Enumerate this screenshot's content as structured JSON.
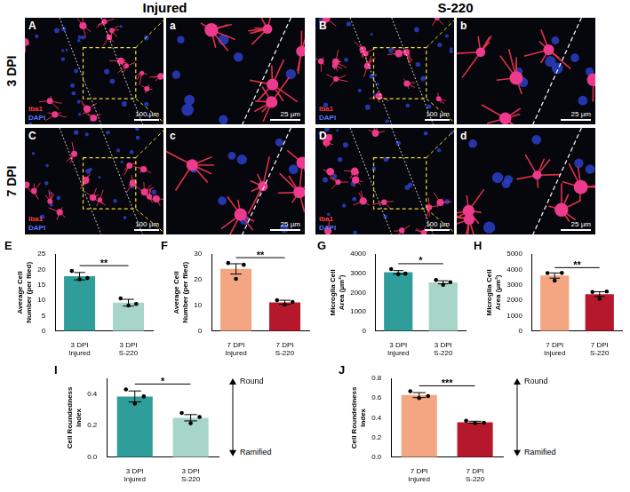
{
  "figure": {
    "column_headers": [
      "Injured",
      "S-220"
    ],
    "row_labels": [
      "3 DPI",
      "7 DPI"
    ],
    "image_panels": [
      [
        {
          "label": "A",
          "stains": [
            "Iba1",
            "DAPI"
          ],
          "scale_bar": "100 µm"
        },
        {
          "label": "a",
          "scale_bar": "25 µm"
        },
        {
          "label": "B",
          "stains": [
            "Iba1",
            "DAPI"
          ],
          "scale_bar": "100 µm"
        },
        {
          "label": "b",
          "scale_bar": "25 µm"
        }
      ],
      [
        {
          "label": "C",
          "stains": [
            "Iba1",
            "DAPI"
          ],
          "scale_bar": "100 µm"
        },
        {
          "label": "c",
          "scale_bar": "25 µm"
        },
        {
          "label": "D",
          "stains": [
            "Iba1",
            "DAPI"
          ],
          "scale_bar": "100 µm"
        },
        {
          "label": "d",
          "scale_bar": "25 µm"
        }
      ]
    ]
  },
  "chart_data": [
    {
      "panel": "E",
      "type": "bar",
      "categories": [
        "3 DPI Injured",
        "3 DPI S-220"
      ],
      "values": [
        17.8,
        9.2
      ],
      "errors": [
        1.2,
        1.1
      ],
      "points": [
        [
          19.5,
          16.8,
          17.2
        ],
        [
          10.6,
          8.3,
          8.8
        ]
      ],
      "colors": [
        "#2f9e9b",
        "#a7d5c8"
      ],
      "ylabel": "Average Cell Number (per filed)",
      "ylim": [
        0,
        25
      ],
      "yticks": [
        0,
        5,
        10,
        15,
        20,
        25
      ],
      "grid": false,
      "significance": "**"
    },
    {
      "panel": "F",
      "type": "bar",
      "categories": [
        "7 DPI Injured",
        "7 DPI S-220"
      ],
      "values": [
        24.2,
        11.2
      ],
      "errors": [
        2.0,
        0.8
      ],
      "points": [
        [
          26.5,
          20.3,
          25.8
        ],
        [
          12.0,
          10.3,
          11.3
        ]
      ],
      "colors": [
        "#f4a582",
        "#b5182b"
      ],
      "ylabel": "Average Cell Number (per filed)",
      "ylim": [
        0,
        30
      ],
      "yticks": [
        0,
        10,
        20,
        30
      ],
      "grid": false,
      "significance": "**"
    },
    {
      "panel": "G",
      "type": "bar",
      "categories": [
        "3 DPI Injured",
        "3 DPI S-220"
      ],
      "values": [
        3050,
        2530
      ],
      "errors": [
        90,
        80
      ],
      "points": [
        [
          3220,
          2950,
          2980
        ],
        [
          2650,
          2400,
          2540
        ]
      ],
      "colors": [
        "#2f9e9b",
        "#a7d5c8"
      ],
      "ylabel": "Microglia Cell Area (µm²)",
      "ylim": [
        0,
        4000
      ],
      "yticks": [
        0,
        1000,
        2000,
        3000,
        4000
      ],
      "grid": false,
      "significance": "*"
    },
    {
      "panel": "H",
      "type": "bar",
      "categories": [
        "7 DPI Injured",
        "7 DPI S-220"
      ],
      "values": [
        3600,
        2400
      ],
      "errors": [
        170,
        150
      ],
      "points": [
        [
          3760,
          3270,
          3770
        ],
        [
          2540,
          2090,
          2570
        ]
      ],
      "colors": [
        "#f4a582",
        "#b5182b"
      ],
      "ylabel": "Microglia Cell Area (µm²)",
      "ylim": [
        0,
        5000
      ],
      "yticks": [
        0,
        1000,
        2000,
        3000,
        4000,
        5000
      ],
      "grid": false,
      "significance": "**"
    },
    {
      "panel": "I",
      "type": "bar",
      "categories": [
        "3 DPI Injured",
        "3 DPI S-220"
      ],
      "values": [
        0.385,
        0.25
      ],
      "errors": [
        0.035,
        0.02
      ],
      "points": [
        [
          0.43,
          0.34,
          0.385
        ],
        [
          0.28,
          0.215,
          0.255
        ]
      ],
      "colors": [
        "#2f9e9b",
        "#a7d5c8"
      ],
      "ylabel": "Cell Roundedness Index",
      "ylim": [
        0,
        0.5
      ],
      "yticks": [
        {
          "value": 0,
          "label": "0.0"
        },
        0.2,
        0.4
      ],
      "grid": false,
      "significance": "*",
      "scale_arrow": {
        "top": "Round",
        "bottom": "Ramified"
      }
    },
    {
      "panel": "J",
      "type": "bar",
      "categories": [
        "7 DPI Injured",
        "7 DPI S-220"
      ],
      "values": [
        0.63,
        0.355
      ],
      "errors": [
        0.025,
        0.01
      ],
      "points": [
        [
          0.67,
          0.6,
          0.62
        ],
        [
          0.37,
          0.345,
          0.35
        ]
      ],
      "colors": [
        "#f4a582",
        "#b5182b"
      ],
      "ylabel": "Cell Roundedness Index",
      "ylim": [
        0,
        0.8
      ],
      "yticks": [
        {
          "value": 0,
          "label": "0.0"
        },
        0.2,
        0.4,
        0.6,
        0.8
      ],
      "grid": false,
      "significance": "***",
      "scale_arrow": {
        "top": "Round",
        "bottom": "Ramified"
      }
    }
  ]
}
